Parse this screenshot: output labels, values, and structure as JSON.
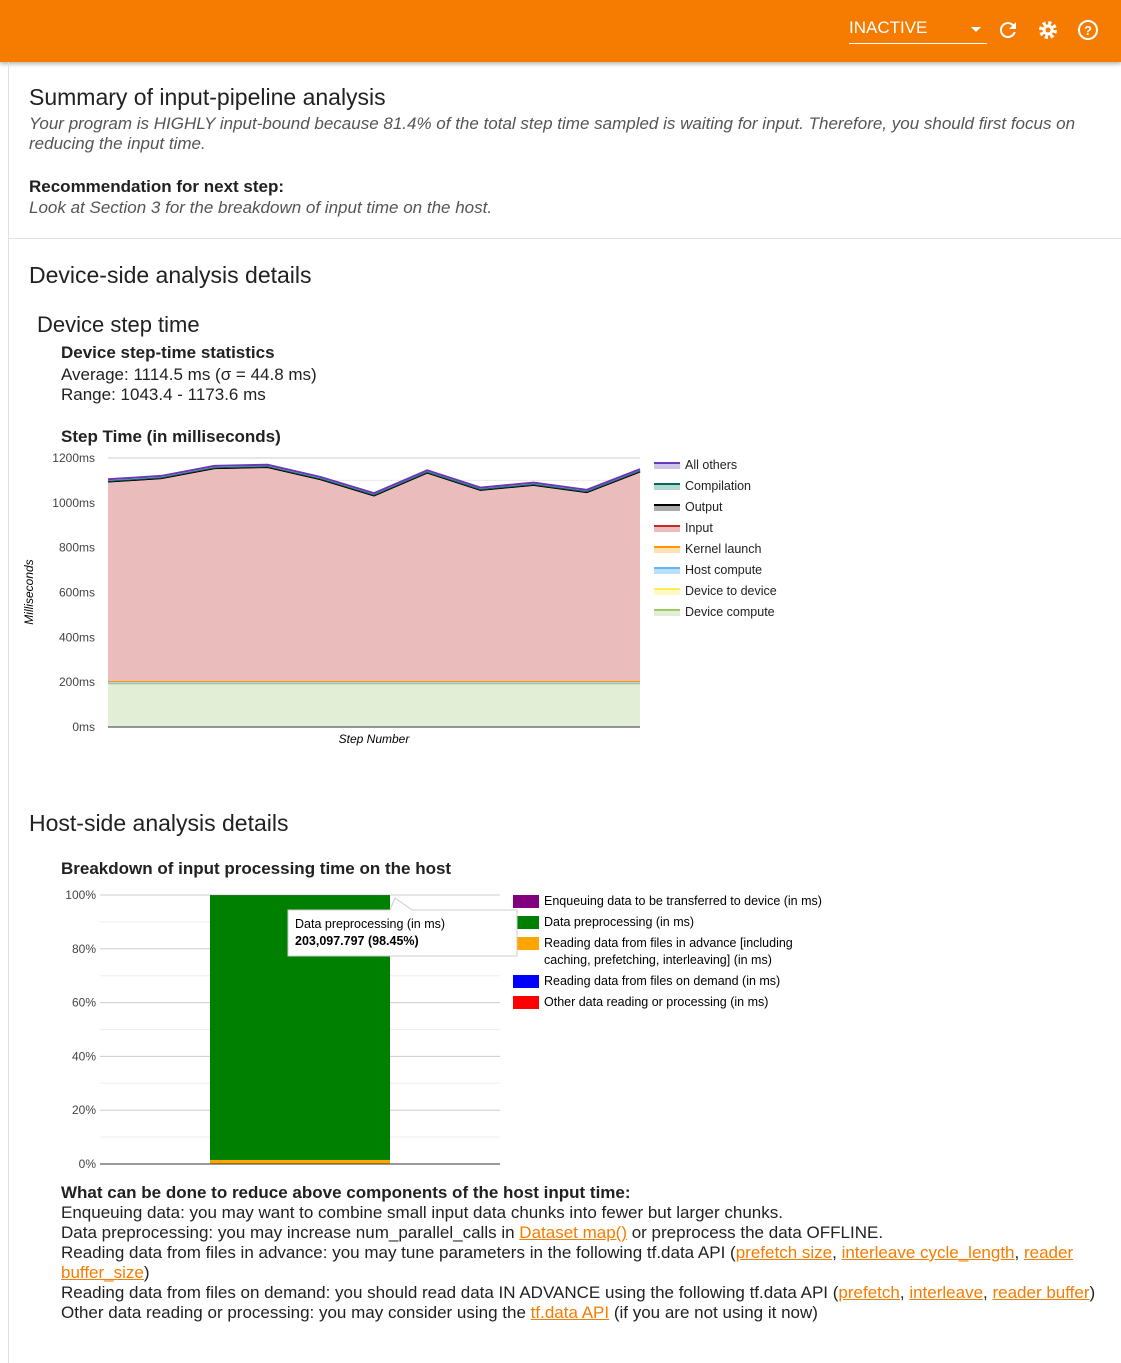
{
  "header": {
    "status": "INACTIVE",
    "icons": [
      "refresh-icon",
      "gear-icon",
      "help-icon"
    ],
    "color": "#f57c00"
  },
  "summary": {
    "title": "Summary of input-pipeline analysis",
    "text": "Your program is HIGHLY input-bound because 81.4% of the total step time sampled is waiting for input. Therefore, you should first focus on reducing the input time.",
    "rec_label": "Recommendation for next step:",
    "rec_text": "Look at Section 3 for the breakdown of input time on the host."
  },
  "device": {
    "title": "Device-side analysis details",
    "sub": "Device step time",
    "stats_title": "Device step-time statistics",
    "average": "Average: 1114.5 ms (σ = 44.8 ms)",
    "range": "Range: 1043.4 - 1173.6 ms",
    "chart_title": "Step Time (in milliseconds)"
  },
  "host": {
    "title": "Host-side analysis details",
    "chart_title": "Breakdown of input processing time on the host",
    "tooltip_label": "Data preprocessing (in ms)",
    "tooltip_value": "203,097.797 (98.45%)",
    "advice_title": "What can be done to reduce above components of the host input time:",
    "l1": "Enqueuing data: you may want to combine small input data chunks into fewer but larger chunks.",
    "l2a": "Data preprocessing: you may increase num_parallel_calls in ",
    "l2link": "Dataset map()",
    "l2b": " or preprocess the data OFFLINE.",
    "l3a": "Reading data from files in advance: you may tune parameters in the following tf.data API (",
    "l3l1": "prefetch size",
    "l3l2": "interleave cycle_length",
    "l3l3": "reader buffer_size",
    "l3b": ")",
    "l4a": "Reading data from files on demand: you should read data IN ADVANCE using the following tf.data API (",
    "l4l1": "prefetch",
    "l4l2": "interleave",
    "l4l3": "reader buffer",
    "l4b": ")",
    "l5a": "Other data reading or processing: you may consider using the ",
    "l5link": "tf.data API",
    "l5b": " (if you are not using it now)"
  },
  "chart_data": [
    {
      "type": "area",
      "stacked": true,
      "title": "Step Time (in milliseconds)",
      "xlabel": "Step Number",
      "ylabel": "Milliseconds",
      "ylim": [
        0,
        1200
      ],
      "yticks": [
        "0ms",
        "200ms",
        "400ms",
        "600ms",
        "800ms",
        "1000ms",
        "1200ms"
      ],
      "legend": "right",
      "series": [
        {
          "name": "Device compute",
          "color": "#9ccc65",
          "fill": "#e2efd6",
          "values": [
            195,
            195,
            195,
            195,
            195,
            195,
            195,
            195,
            195,
            195,
            195
          ]
        },
        {
          "name": "Device to device",
          "color": "#ffee58",
          "fill": "#fff9c4",
          "values": [
            2,
            2,
            2,
            2,
            2,
            2,
            2,
            2,
            2,
            2,
            2
          ]
        },
        {
          "name": "Host compute",
          "color": "#64b5f6",
          "fill": "#bbdefb",
          "values": [
            1,
            1,
            1,
            1,
            1,
            1,
            1,
            1,
            1,
            1,
            1
          ]
        },
        {
          "name": "Kernel launch",
          "color": "#ff9800",
          "fill": "#ffe0b2",
          "values": [
            7,
            7,
            7,
            7,
            7,
            7,
            7,
            7,
            7,
            7,
            7
          ]
        },
        {
          "name": "Input",
          "color": "#c62828",
          "fill": "#ebbcbc",
          "values": [
            890,
            905,
            950,
            955,
            900,
            828,
            930,
            853,
            875,
            843,
            935
          ]
        },
        {
          "name": "Output",
          "color": "#000000",
          "fill": "#aaaaaa",
          "values": [
            0,
            0,
            0,
            0,
            0,
            0,
            0,
            0,
            0,
            0,
            0
          ]
        },
        {
          "name": "Compilation",
          "color": "#00695c",
          "fill": "#b2d8d2",
          "values": [
            4,
            4,
            4,
            4,
            4,
            4,
            4,
            4,
            4,
            4,
            4
          ]
        },
        {
          "name": "All others",
          "color": "#673ab7",
          "fill": "#d1c4e9",
          "values": [
            6,
            6,
            6,
            6,
            6,
            6,
            6,
            6,
            6,
            6,
            6
          ]
        }
      ]
    },
    {
      "type": "bar",
      "stacked": true,
      "percent": true,
      "title": "Breakdown of input processing time on the host",
      "ylim": [
        0,
        100
      ],
      "yticks": [
        "0%",
        "20%",
        "40%",
        "60%",
        "80%",
        "100%"
      ],
      "legend": "right",
      "series": [
        {
          "name": "Other data reading or processing (in ms)",
          "color": "#ff0000",
          "value": 0
        },
        {
          "name": "Reading data from files on demand (in ms)",
          "color": "#0000ff",
          "value": 0
        },
        {
          "name": "Reading data from files in advance [including caching, prefetching, interleaving] (in ms)",
          "color": "#ffa500",
          "value": 1.5
        },
        {
          "name": "Data preprocessing (in ms)",
          "color": "#008000",
          "value": 98.45
        },
        {
          "name": "Enqueuing data to be transferred to device (in ms)",
          "color": "#800080",
          "value": 0.05
        }
      ]
    }
  ]
}
